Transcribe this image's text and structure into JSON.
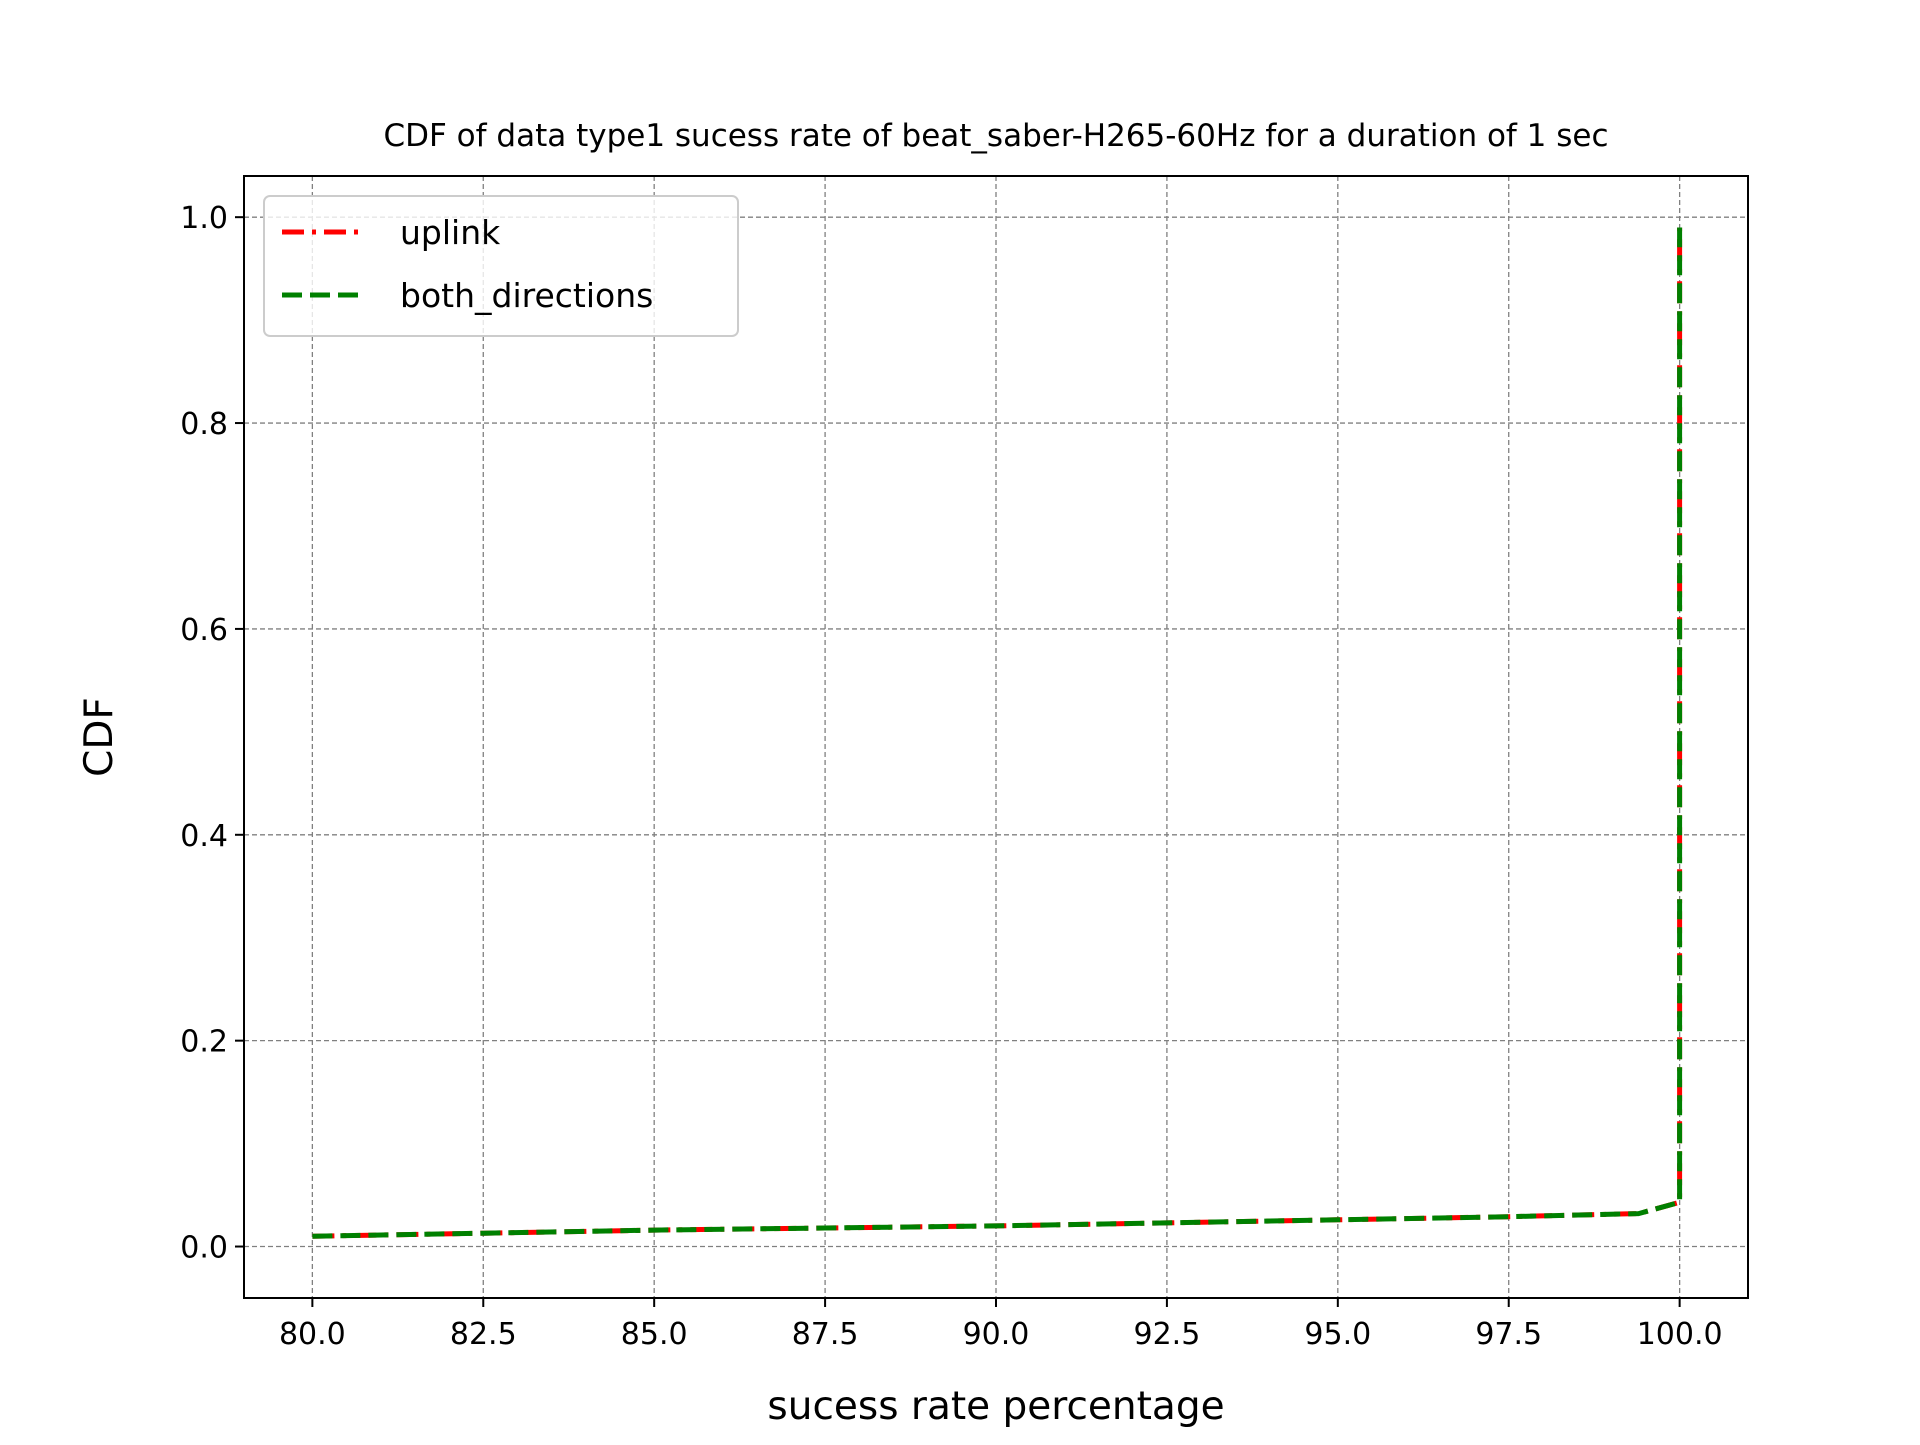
{
  "chart_data": {
    "type": "line",
    "title": "CDF of data type1 sucess rate of beat_saber-H265-60Hz for a duration of 1 sec",
    "xlabel": "sucess rate percentage",
    "ylabel": "CDF",
    "xlim": [
      79.0,
      101.0
    ],
    "ylim": [
      -0.05,
      1.04
    ],
    "xticks": [
      80.0,
      82.5,
      85.0,
      87.5,
      90.0,
      92.5,
      95.0,
      97.5,
      100.0
    ],
    "xtick_labels": [
      "80.0",
      "82.5",
      "85.0",
      "87.5",
      "90.0",
      "92.5",
      "95.0",
      "97.5",
      "100.0"
    ],
    "yticks": [
      0.0,
      0.2,
      0.4,
      0.6,
      0.8,
      1.0
    ],
    "ytick_labels": [
      "0.0",
      "0.2",
      "0.4",
      "0.6",
      "0.8",
      "1.0"
    ],
    "grid": true,
    "legend_position": "top-left",
    "series": [
      {
        "name": "uplink",
        "color": "#ff0000",
        "line_style": "dash-dot",
        "x": [
          80.0,
          82.5,
          85.0,
          87.5,
          90.0,
          92.5,
          95.0,
          97.5,
          99.4,
          100.0,
          100.0
        ],
        "y": [
          0.01,
          0.013,
          0.016,
          0.018,
          0.02,
          0.023,
          0.026,
          0.029,
          0.032,
          0.043,
          0.99
        ]
      },
      {
        "name": "both_directions",
        "color": "#008000",
        "line_style": "dashed",
        "x": [
          80.0,
          82.5,
          85.0,
          87.5,
          90.0,
          92.5,
          95.0,
          97.5,
          99.4,
          100.0,
          100.0
        ],
        "y": [
          0.01,
          0.013,
          0.016,
          0.018,
          0.02,
          0.023,
          0.026,
          0.029,
          0.032,
          0.043,
          0.99
        ]
      }
    ]
  }
}
